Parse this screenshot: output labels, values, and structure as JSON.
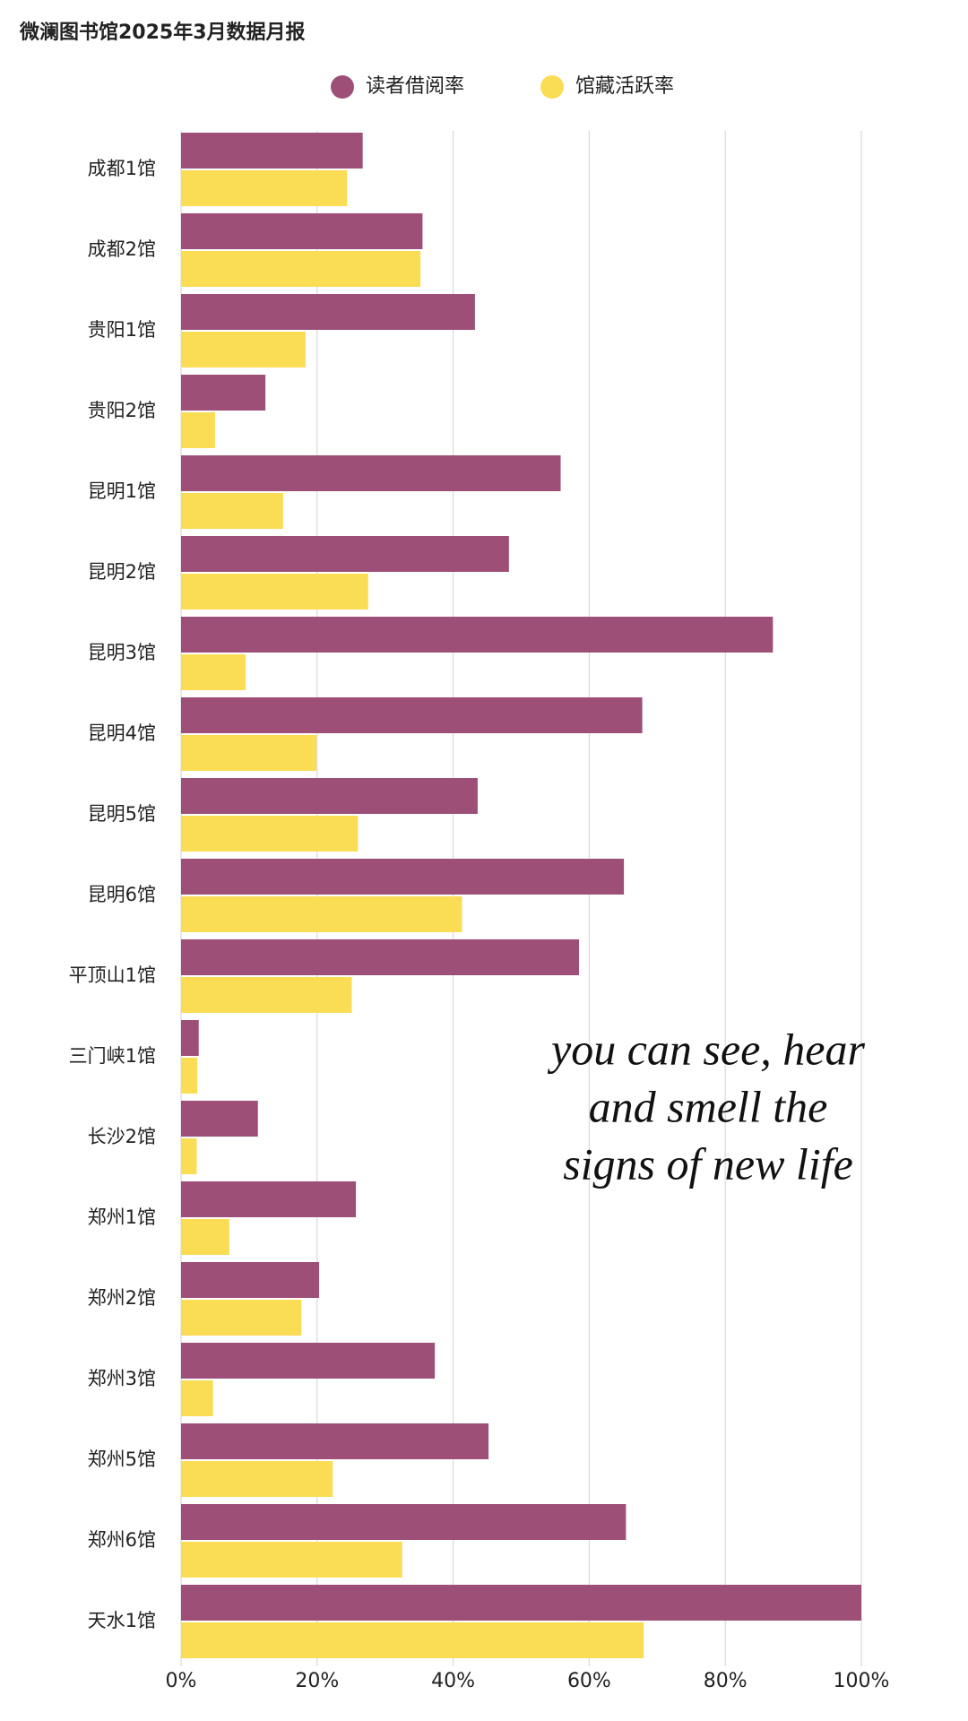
{
  "chart_data": {
    "type": "hbar",
    "title": "微澜图书馆2025年3月数据月报",
    "categories": [
      "成都1馆",
      "成都2馆",
      "贵阳1馆",
      "贵阳2馆",
      "昆明1馆",
      "昆明2馆",
      "昆明3馆",
      "昆明4馆",
      "昆明5馆",
      "昆明6馆",
      "平顶山1馆",
      "三门峡1馆",
      "长沙2馆",
      "郑州1馆",
      "郑州2馆",
      "郑州3馆",
      "郑州5馆",
      "郑州6馆",
      "天水1馆"
    ],
    "series": [
      {
        "name": "读者借阅率",
        "color": "#9e4f78",
        "values": [
          26.7,
          35.5,
          43.2,
          12.4,
          55.8,
          48.2,
          87.0,
          67.8,
          43.6,
          65.1,
          58.5,
          2.6,
          11.3,
          25.7,
          20.3,
          37.3,
          45.2,
          65.4,
          100
        ]
      },
      {
        "name": "馆藏活跃率",
        "color": "#fbdc55",
        "values": [
          24.4,
          35.2,
          18.3,
          5.0,
          15.0,
          27.5,
          9.5,
          19.9,
          26.0,
          41.3,
          25.1,
          2.4,
          2.3,
          7.1,
          17.7,
          4.7,
          22.3,
          32.5,
          68.0
        ]
      }
    ],
    "xlim": [
      0,
      100
    ],
    "xticks": [
      {
        "value": 0,
        "label": "0%"
      },
      {
        "value": 20,
        "label": "20%"
      },
      {
        "value": 40,
        "label": "40%"
      },
      {
        "value": 60,
        "label": "60%"
      },
      {
        "value": 80,
        "label": "80%"
      },
      {
        "value": 100,
        "label": "100%"
      }
    ],
    "grid": true,
    "annotation": [
      "you can see, hear",
      "and smell the",
      "signs of new life"
    ]
  }
}
